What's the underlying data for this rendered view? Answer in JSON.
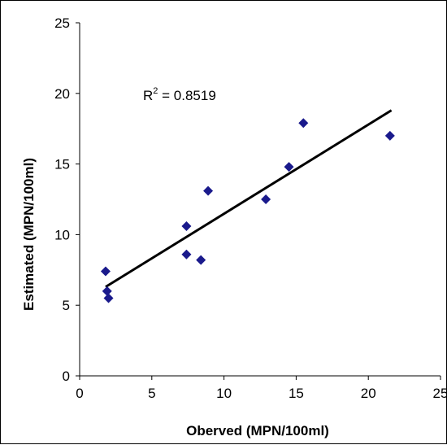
{
  "chart_data": {
    "type": "scatter",
    "title": "",
    "xlabel": "Oberved (MPN/100ml)",
    "ylabel": "Estimated (MPN/100ml)",
    "xlim": [
      0,
      25
    ],
    "ylim": [
      0,
      25
    ],
    "xticks": [
      "0",
      "5",
      "10",
      "15",
      "20",
      "25"
    ],
    "yticks": [
      "0",
      "5",
      "10",
      "15",
      "20",
      "25"
    ],
    "grid": false,
    "legend": "none",
    "marker_color": "#1a1a8c",
    "trendline_color": "#000000",
    "points": [
      {
        "x": 1.8,
        "y": 7.4
      },
      {
        "x": 1.9,
        "y": 6.0
      },
      {
        "x": 2.0,
        "y": 5.5
      },
      {
        "x": 7.4,
        "y": 10.6
      },
      {
        "x": 7.4,
        "y": 8.6
      },
      {
        "x": 8.4,
        "y": 8.2
      },
      {
        "x": 8.9,
        "y": 13.1
      },
      {
        "x": 12.9,
        "y": 12.5
      },
      {
        "x": 14.5,
        "y": 14.8
      },
      {
        "x": 15.5,
        "y": 17.9
      },
      {
        "x": 21.5,
        "y": 17.0
      }
    ],
    "trendline": {
      "x": [
        1.8,
        21.6
      ],
      "y": [
        6.3,
        18.8
      ]
    },
    "annotation": {
      "base": "R",
      "sup": "2",
      "rest": " = 0.8519"
    }
  }
}
